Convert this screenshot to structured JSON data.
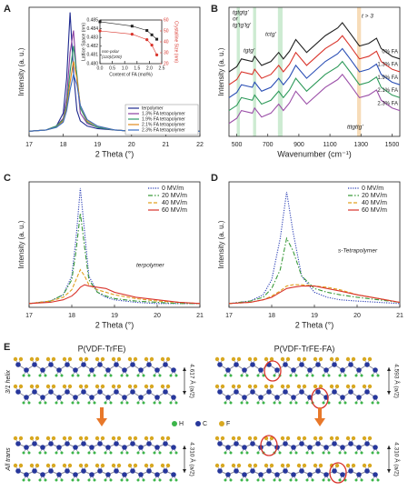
{
  "chart_data": [
    {
      "type": "line",
      "panel": "A",
      "xlabel": "2 Theta (°)",
      "ylabel": "Intensity (a. u.)",
      "xlim": [
        17,
        22
      ],
      "xticks": [
        17,
        18,
        19,
        20,
        21,
        22
      ],
      "ylim": [
        0,
        100
      ],
      "x": [
        17,
        17.5,
        17.8,
        18.0,
        18.1,
        18.2,
        18.3,
        18.4,
        18.5,
        18.7,
        19,
        19.5,
        20,
        21,
        22
      ],
      "series": [
        {
          "name": "terpolymer",
          "color": "#1f2a8f",
          "style": "solid",
          "values": [
            4,
            5,
            8,
            18,
            45,
            96,
            50,
            20,
            12,
            8,
            6,
            5,
            4,
            4,
            4
          ]
        },
        {
          "name": "1.3% FA tetrapolymer",
          "color": "#8b3fa0",
          "style": "solid",
          "values": [
            4,
            5,
            8,
            14,
            30,
            65,
            82,
            45,
            18,
            10,
            7,
            5,
            4,
            4,
            4
          ]
        },
        {
          "name": "1.9% FA tetrapolymer",
          "color": "#2e9a6a",
          "style": "solid",
          "values": [
            4,
            5,
            8,
            13,
            25,
            50,
            70,
            48,
            22,
            11,
            7,
            5,
            4,
            4,
            4
          ]
        },
        {
          "name": "2.1% FA tetrapolymer",
          "color": "#e08a1e",
          "style": "solid",
          "values": [
            4,
            5,
            7,
            12,
            22,
            42,
            58,
            45,
            24,
            12,
            8,
            5,
            4,
            4,
            4
          ]
        },
        {
          "name": "2.3% FA tetrapolymer",
          "color": "#3a6fc4",
          "style": "solid",
          "values": [
            4,
            5,
            7,
            11,
            20,
            36,
            48,
            40,
            24,
            13,
            8,
            5,
            4,
            4,
            4
          ]
        }
      ],
      "legend": "lower right"
    },
    {
      "type": "scatter",
      "xlabel": "Content of FA (mol%)",
      "ylabel": "Lattice Space (nm)",
      "y2label": "Crystalline Size (nm)",
      "annotations": [
        "non-polar",
        "(110)/(200)"
      ],
      "xlim": [
        0,
        2.5
      ],
      "xticks": [
        {
          "value": 0,
          "label": "0.0"
        },
        0.5,
        {
          "value": 1,
          "label": "1.0"
        },
        1.5,
        {
          "value": 2,
          "label": "2.0"
        },
        2.5
      ],
      "ylim": [
        0.48,
        0.485
      ],
      "yticks": [
        0.485,
        0.484,
        0.483,
        0.482,
        0.481,
        {
          "value": 0.48,
          "label": "0.480"
        }
      ],
      "y2lim": [
        20,
        60
      ],
      "y2ticks": [
        20,
        30,
        40,
        50,
        60
      ],
      "x": [
        0,
        1.3,
        1.9,
        2.1,
        2.3
      ],
      "series": [
        {
          "color": "#222222",
          "marker": "square",
          "values": [
            0.4848,
            0.4843,
            0.4838,
            0.4833,
            0.4828
          ]
        },
        {
          "color": "#d9342b",
          "marker": "circle",
          "axis": "y2",
          "values": [
            50,
            47,
            42,
            37,
            28
          ]
        }
      ]
    },
    {
      "type": "line",
      "panel": "B",
      "xlabel": "Wavenumber (cm⁻¹)",
      "ylabel": "Intensity (a. u.)",
      "xlim": [
        450,
        1550
      ],
      "xticks": [
        500,
        700,
        900,
        1100,
        1300,
        1500
      ],
      "ylim": [
        0,
        100
      ],
      "annotations": [
        "tgtgtg'",
        "or",
        "tg'tg'tg'",
        "tgtg'",
        "tctg'",
        "t > 3",
        "tttgttg'"
      ],
      "shaded_bands": [
        {
          "xlim": [
            500,
            520
          ],
          "color": "#cdebd2"
        },
        {
          "xlim": [
            605,
            625
          ],
          "color": "#cdebd2"
        },
        {
          "xlim": [
            765,
            795
          ],
          "color": "#cdebd2"
        },
        {
          "xlim": [
            1275,
            1300
          ],
          "color": "#f7dcb8"
        }
      ],
      "x": [
        450,
        500,
        530,
        600,
        615,
        660,
        720,
        770,
        800,
        840,
        880,
        950,
        1070,
        1150,
        1180,
        1230,
        1290,
        1350,
        1400,
        1430,
        1500,
        1550
      ],
      "series": [
        {
          "name": "0% FA",
          "color": "#222222",
          "style": "solid",
          "values": [
            50,
            54,
            60,
            58,
            62,
            55,
            58,
            65,
            60,
            66,
            75,
            65,
            78,
            84,
            88,
            80,
            70,
            72,
            76,
            68,
            62,
            60
          ]
        },
        {
          "name": "1.3% FA",
          "color": "#d9342b",
          "style": "solid",
          "values": [
            40,
            44,
            50,
            48,
            52,
            45,
            48,
            55,
            50,
            56,
            65,
            55,
            68,
            74,
            78,
            70,
            60,
            62,
            66,
            58,
            52,
            50
          ]
        },
        {
          "name": "1.9% FA",
          "color": "#2b4fb5",
          "style": "solid",
          "values": [
            30,
            34,
            40,
            38,
            42,
            35,
            38,
            45,
            40,
            46,
            55,
            45,
            58,
            64,
            68,
            60,
            50,
            52,
            56,
            48,
            42,
            40
          ]
        },
        {
          "name": "2.1% FA",
          "color": "#2e9a5a",
          "style": "solid",
          "values": [
            20,
            24,
            30,
            28,
            32,
            25,
            28,
            35,
            30,
            36,
            45,
            35,
            48,
            54,
            58,
            50,
            40,
            42,
            46,
            38,
            32,
            30
          ]
        },
        {
          "name": "2.3% FA",
          "color": "#9b4fa8",
          "style": "solid",
          "values": [
            10,
            14,
            20,
            18,
            22,
            15,
            18,
            25,
            20,
            26,
            35,
            25,
            38,
            44,
            48,
            40,
            30,
            32,
            36,
            28,
            22,
            20
          ]
        }
      ]
    },
    {
      "type": "line",
      "panel": "C",
      "xlabel": "2 Theta (°)",
      "ylabel": "Intensity (a. u.)",
      "xlim": [
        17,
        21
      ],
      "xticks": [
        17,
        18,
        19,
        20,
        21
      ],
      "ylim": [
        0,
        100
      ],
      "annotations": [
        "terpolymer"
      ],
      "x": [
        17,
        17.5,
        17.8,
        18.0,
        18.1,
        18.2,
        18.3,
        18.4,
        18.6,
        18.8,
        19,
        19.5,
        20,
        20.5,
        21
      ],
      "series": [
        {
          "name": "0 MV/m",
          "color": "#2b3fb5",
          "style": "dotted",
          "values": [
            3,
            5,
            10,
            25,
            55,
            95,
            60,
            25,
            12,
            8,
            6,
            4,
            3,
            3,
            3
          ]
        },
        {
          "name": "20 MV/m",
          "color": "#3a9a3a",
          "style": "dashdot",
          "values": [
            3,
            5,
            10,
            22,
            45,
            75,
            48,
            22,
            12,
            9,
            7,
            5,
            4,
            3,
            3
          ]
        },
        {
          "name": "40 MV/m",
          "color": "#e0a020",
          "style": "dashed",
          "values": [
            3,
            5,
            8,
            14,
            22,
            30,
            25,
            18,
            14,
            12,
            10,
            7,
            5,
            4,
            3
          ]
        },
        {
          "name": "60 MV/m",
          "color": "#d9342b",
          "style": "solid",
          "values": [
            3,
            4,
            6,
            9,
            12,
            16,
            18,
            17,
            16,
            15,
            12,
            8,
            6,
            4,
            3
          ]
        }
      ],
      "legend": "upper right"
    },
    {
      "type": "line",
      "panel": "D",
      "xlabel": "2 Theta (°)",
      "ylabel": "Intensity (a. u.)",
      "xlim": [
        17,
        21
      ],
      "xticks": [
        17,
        18,
        19,
        20,
        21
      ],
      "ylim": [
        0,
        100
      ],
      "annotations": [
        "s-Tetrapolymer"
      ],
      "x": [
        17,
        17.5,
        17.8,
        18.0,
        18.2,
        18.35,
        18.5,
        18.7,
        19,
        19.3,
        19.6,
        20,
        20.5,
        21
      ],
      "series": [
        {
          "name": "0 MV/m",
          "color": "#2b3fb5",
          "style": "dotted",
          "values": [
            3,
            5,
            10,
            22,
            55,
            92,
            60,
            25,
            12,
            8,
            6,
            5,
            4,
            3
          ]
        },
        {
          "name": "20 MV/m",
          "color": "#3a9a3a",
          "style": "dashdot",
          "values": [
            3,
            5,
            8,
            15,
            30,
            55,
            45,
            25,
            15,
            12,
            10,
            8,
            6,
            4
          ]
        },
        {
          "name": "40 MV/m",
          "color": "#e0a020",
          "style": "dashed",
          "values": [
            3,
            4,
            6,
            9,
            13,
            17,
            18,
            18,
            17,
            16,
            14,
            10,
            7,
            4
          ]
        },
        {
          "name": "60 MV/m",
          "color": "#d9342b",
          "style": "solid",
          "values": [
            3,
            4,
            6,
            8,
            12,
            15,
            16,
            17,
            17,
            15,
            13,
            10,
            7,
            4
          ]
        }
      ],
      "legend": "upper right"
    }
  ],
  "panel_e": {
    "panel": "E",
    "left_title": "P(VDF-TrFE)",
    "right_title": "P(VDF-TrFE-FA)",
    "row_labels": [
      "3/1 helix",
      "All trans"
    ],
    "spacings": [
      "4.617 Å (a/2)",
      "4.593 Å (a/2)",
      "4.310 Å (a/2)",
      "4.310 Å (a/2)"
    ],
    "atoms": [
      "H",
      "C",
      "F"
    ]
  }
}
